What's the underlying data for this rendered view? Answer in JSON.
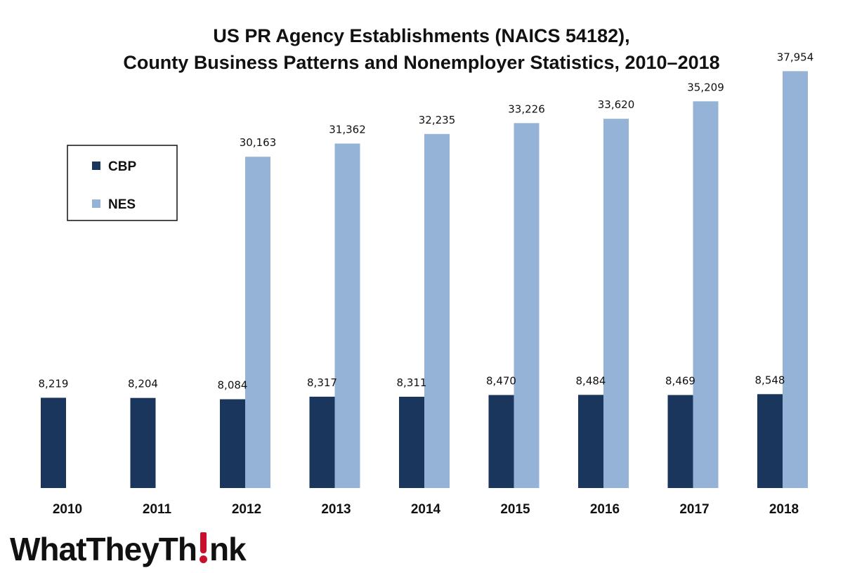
{
  "colors": {
    "cbp": "#1a365d",
    "nes": "#95b3d7"
  },
  "logo": {
    "before": "WhatTheyTh",
    "after": "nk"
  },
  "chart_data": {
    "type": "bar",
    "title": [
      "US PR Agency Establishments (NAICS 54182),",
      "County Business Patterns and Nonemployer Statistics, 2010–2018"
    ],
    "categories": [
      "2010",
      "2011",
      "2012",
      "2013",
      "2014",
      "2015",
      "2016",
      "2017",
      "2018"
    ],
    "series": [
      {
        "name": "CBP",
        "values": [
          8219,
          8204,
          8084,
          8317,
          8311,
          8470,
          8484,
          8469,
          8548
        ],
        "labels": [
          "8,219",
          "8,204",
          "8,084",
          "8,317",
          "8,311",
          "8,470",
          "8,484",
          "8,469",
          "8,548"
        ]
      },
      {
        "name": "NES",
        "values": [
          null,
          null,
          30163,
          31362,
          32235,
          33226,
          33620,
          35209,
          37954
        ],
        "labels": [
          null,
          null,
          "30,163",
          "31,362",
          "32,235",
          "33,226",
          "33,620",
          "35,209",
          "37,954"
        ]
      }
    ],
    "ylim": [
      0,
      39000
    ],
    "grid": false,
    "legend": "top-left",
    "xlabel": "",
    "ylabel": ""
  }
}
